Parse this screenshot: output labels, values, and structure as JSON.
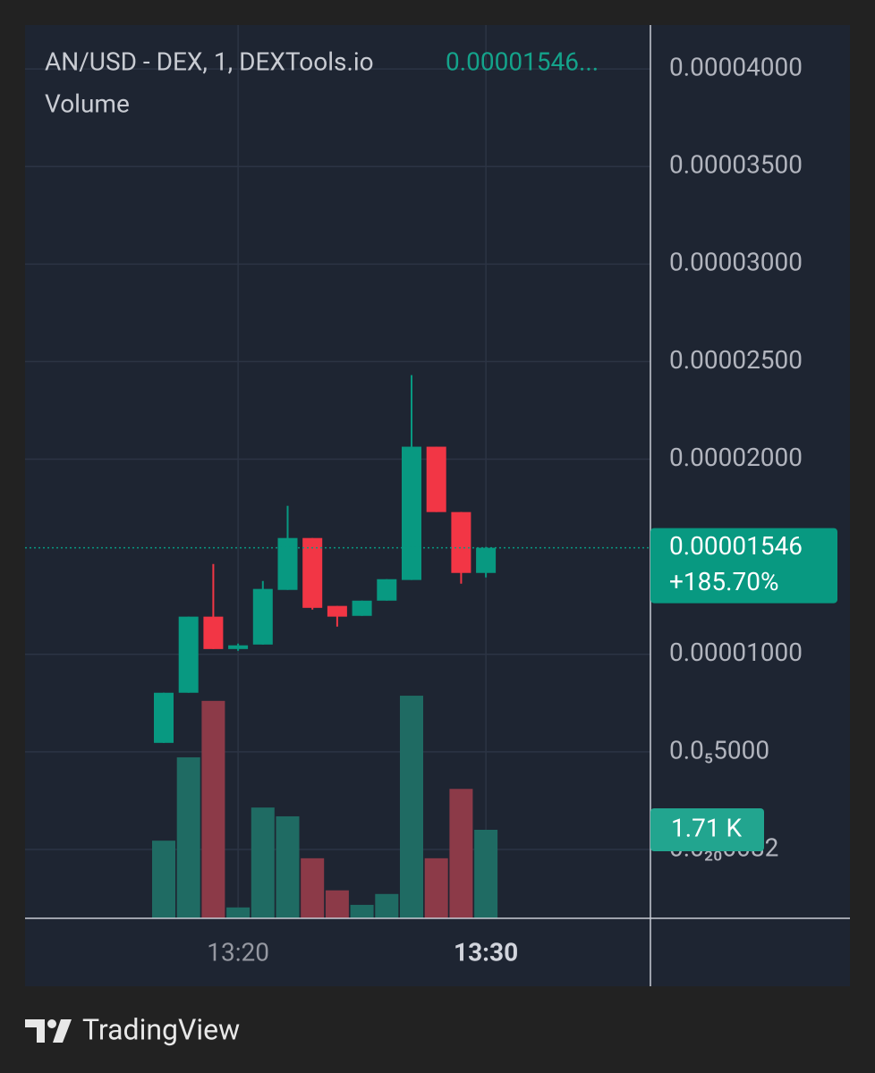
{
  "chart_data": {
    "type": "candlestick",
    "title": "AN/USD - DEX, 1, DEXTools.io",
    "header_price": "0.00001546...",
    "volume_title": "Volume",
    "categories": [
      null,
      null,
      null,
      "13:20",
      null,
      null,
      null,
      null,
      null,
      null,
      null,
      null,
      null,
      "13:30"
    ],
    "open": [
      5.46e-06,
      8.03e-06,
      1.193e-05,
      1.027e-05,
      1.05e-05,
      1.33e-05,
      1.596e-05,
      1.248e-05,
      1.197e-05,
      1.275e-05,
      1.381e-05,
      2.064e-05,
      1.729e-05,
      1.417e-05
    ],
    "high": [
      8.03e-06,
      1.193e-05,
      1.463e-05,
      1.055e-05,
      1.376e-05,
      1.761e-05,
      1.596e-05,
      1.248e-05,
      1.275e-05,
      1.385e-05,
      2.431e-05,
      2.064e-05,
      1.729e-05,
      1.55e-05
    ],
    "low": [
      5.46e-06,
      8.03e-06,
      1.027e-05,
      1.018e-05,
      1.05e-05,
      1.33e-05,
      1.229e-05,
      1.142e-05,
      1.197e-05,
      1.275e-05,
      1.381e-05,
      1.729e-05,
      1.362e-05,
      1.394e-05
    ],
    "close": [
      8.03e-06,
      1.193e-05,
      1.027e-05,
      1.046e-05,
      1.335e-05,
      1.596e-05,
      1.238e-05,
      1.193e-05,
      1.275e-05,
      1.385e-05,
      2.064e-05,
      1.729e-05,
      1.417e-05,
      1.546e-05
    ],
    "volume": [
      1500,
      3110,
      4200,
      210,
      2140,
      1970,
      1160,
      540,
      260,
      470,
      4300,
      1160,
      2500,
      1710
    ],
    "volume_lim": [
      0,
      17255
    ],
    "last_volume_label": {
      "value": 1710,
      "label": "1.71 K"
    },
    "up_color": "#089981",
    "down_color": "#f23645",
    "volume_up_color": "#1f6b63",
    "volume_down_color": "#8c3a48",
    "ylim": [
      -3.53e-06,
      4.225e-05
    ],
    "yticks": [
      {
        "value": 4e-05,
        "label": "0.00004000"
      },
      {
        "value": 3.5e-05,
        "label": "0.00003500"
      },
      {
        "value": 3e-05,
        "label": "0.00003000"
      },
      {
        "value": 2.5e-05,
        "label": "0.00002500"
      },
      {
        "value": 2e-05,
        "label": "0.00002000"
      },
      {
        "value": 1e-05,
        "label": "0.00001000"
      },
      {
        "value": 5e-06,
        "label": "0.0₅5000"
      },
      {
        "value": 8.2e-24,
        "label": "0.0₂₀0082"
      }
    ],
    "grid": true,
    "last_price": {
      "value": 1.546e-05,
      "label": "0.00001546"
    },
    "change": "+185.70%",
    "brand": "TradingView"
  }
}
